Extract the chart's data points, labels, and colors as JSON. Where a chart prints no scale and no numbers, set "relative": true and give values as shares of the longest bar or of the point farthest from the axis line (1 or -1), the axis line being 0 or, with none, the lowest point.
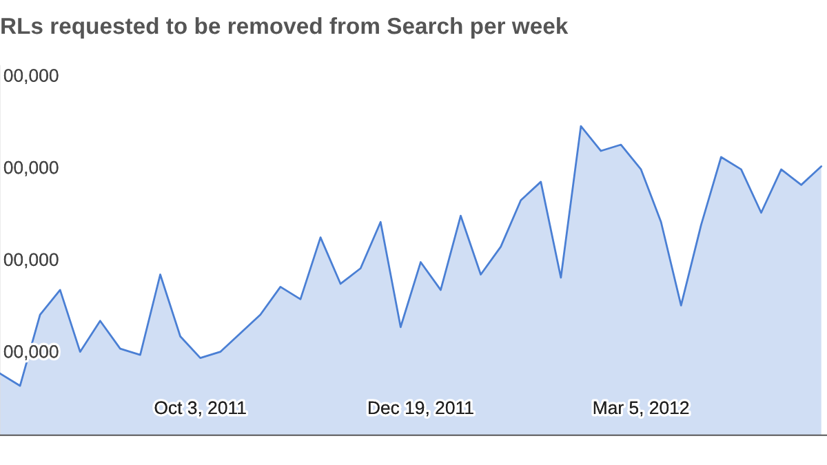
{
  "chart_data": {
    "type": "area",
    "title": "RLs requested to be removed from Search per week",
    "x": [
      "2011-07-25",
      "2011-08-01",
      "2011-08-08",
      "2011-08-15",
      "2011-08-22",
      "2011-08-29",
      "2011-09-05",
      "2011-09-12",
      "2011-09-19",
      "2011-09-26",
      "2011-10-03",
      "2011-10-10",
      "2011-10-17",
      "2011-10-24",
      "2011-10-31",
      "2011-11-07",
      "2011-11-14",
      "2011-11-21",
      "2011-11-28",
      "2011-12-05",
      "2011-12-12",
      "2011-12-19",
      "2011-12-26",
      "2012-01-02",
      "2012-01-09",
      "2012-01-16",
      "2012-01-23",
      "2012-01-30",
      "2012-02-06",
      "2012-02-13",
      "2012-02-20",
      "2012-02-27",
      "2012-03-05",
      "2012-03-12",
      "2012-03-19",
      "2012-03-26",
      "2012-04-02",
      "2012-04-09",
      "2012-04-16",
      "2012-04-23",
      "2012-04-30",
      "2012-05-07"
    ],
    "series": [
      {
        "color": "#4a7fd4",
        "values": [
          0.2,
          0.16,
          0.39,
          0.47,
          0.27,
          0.37,
          0.28,
          0.26,
          0.52,
          0.32,
          0.25,
          0.27,
          0.33,
          0.39,
          0.48,
          0.44,
          0.64,
          0.49,
          0.54,
          0.69,
          0.35,
          0.56,
          0.47,
          0.71,
          0.52,
          0.61,
          0.76,
          0.82,
          0.51,
          1,
          0.92,
          0.94,
          0.86,
          0.69,
          0.42,
          0.68,
          0.9,
          0.86,
          0.72,
          0.86,
          0.81,
          0.87
        ]
      }
    ],
    "relative": true,
    "xlim": [
      "2011-07-25",
      "2012-05-09"
    ],
    "xticks": [
      {
        "value": "2011-10-03",
        "label": "Oct 3, 2011"
      },
      {
        "value": "2011-12-19",
        "label": "Dec 19, 2011"
      },
      {
        "value": "2012-03-05",
        "label": "Mar 5, 2012"
      }
    ],
    "annotations": [
      "00,000",
      "00,000",
      "00,000",
      "00,000"
    ],
    "grid": false,
    "marker": "none",
    "line_style": "solid"
  }
}
